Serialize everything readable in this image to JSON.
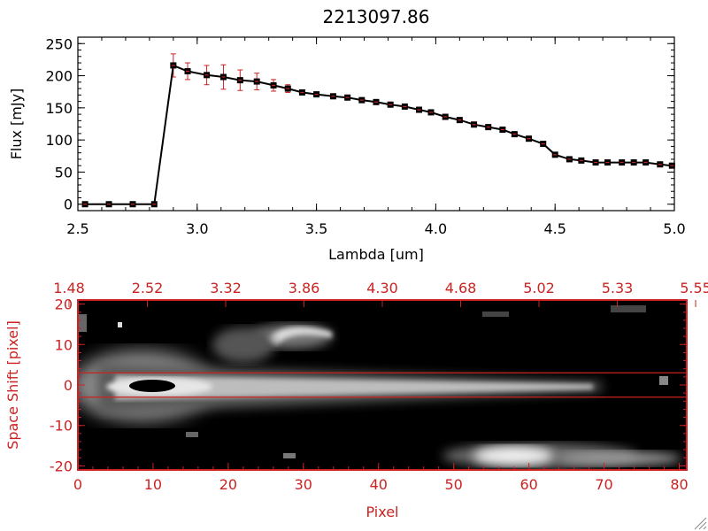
{
  "colors": {
    "axis_black": "#000000",
    "accent_red": "#cc2222",
    "background": "#ffffff"
  },
  "chart_data": [
    {
      "type": "line",
      "title": "2213097.86",
      "xlabel": "Lambda [um]",
      "ylabel": "Flux [mJy]",
      "xlim": [
        2.5,
        5.0
      ],
      "ylim": [
        -10,
        260
      ],
      "x_ticks": [
        "2.5",
        "3.0",
        "3.5",
        "4.0",
        "4.5",
        "5.0"
      ],
      "y_ticks": [
        "0",
        "50",
        "100",
        "150",
        "200",
        "250"
      ],
      "series": [
        {
          "x": [
            2.53,
            2.63,
            2.73,
            2.82,
            2.9,
            2.96,
            3.04,
            3.11,
            3.18,
            3.25,
            3.32,
            3.38,
            3.44,
            3.5,
            3.57,
            3.63,
            3.69,
            3.75,
            3.81,
            3.87,
            3.93,
            3.98,
            4.04,
            4.1,
            4.16,
            4.22,
            4.28,
            4.33,
            4.39,
            4.45,
            4.5,
            4.56,
            4.61,
            4.67,
            4.72,
            4.78,
            4.83,
            4.88,
            4.94,
            4.99
          ],
          "y": [
            0,
            0,
            0,
            0,
            216,
            207,
            201,
            198,
            193,
            191,
            185,
            180,
            174,
            171,
            168,
            166,
            162,
            159,
            155,
            152,
            147,
            143,
            136,
            131,
            124,
            120,
            116,
            109,
            102,
            94,
            77,
            70,
            68,
            65,
            65,
            65,
            65,
            65,
            62,
            60
          ],
          "yerr": [
            0,
            0,
            0,
            0,
            18,
            13,
            15,
            19,
            16,
            13,
            9,
            6,
            3,
            3,
            3,
            2,
            2,
            2,
            2,
            2,
            2,
            2,
            2,
            2,
            2,
            2,
            2,
            2,
            2,
            2,
            2,
            2,
            2,
            2,
            2,
            2,
            2,
            2,
            2,
            2
          ]
        }
      ]
    },
    {
      "type": "heatmap",
      "xlabel": "Pixel",
      "ylabel": "Space Shift [pixel]",
      "xlim": [
        0,
        81
      ],
      "ylim": [
        -21,
        21
      ],
      "x_ticks": [
        "0",
        "10",
        "20",
        "30",
        "40",
        "50",
        "60",
        "70",
        "80"
      ],
      "y_ticks": [
        "-20",
        "-10",
        "0",
        "10",
        "20"
      ],
      "top_ticks": [
        "1.48",
        "2.52",
        "3.32",
        "3.86",
        "4.30",
        "4.68",
        "5.02",
        "5.33",
        "5.55"
      ],
      "extraction_window": [
        -3,
        3
      ]
    }
  ],
  "icons": {
    "resize": "resize-grip-icon"
  }
}
